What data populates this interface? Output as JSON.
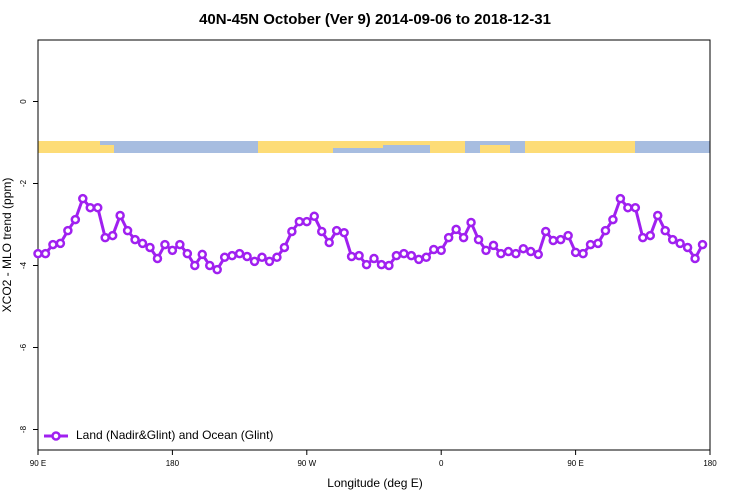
{
  "chart_data": {
    "type": "line",
    "title": "40N-45N October (Ver 9)   2014-09-06 to 2018-12-31",
    "x_label": "Longitude (deg E)",
    "y_label": "XCO2 - MLO trend (ppm)",
    "xlim": [
      90,
      540
    ],
    "ylim": [
      -8.5,
      1.5
    ],
    "xticks": [
      {
        "value": 90,
        "label": "90 E"
      },
      180,
      {
        "value": 270,
        "label": "90 W"
      },
      {
        "value": 360,
        "label": "0"
      },
      {
        "value": 450,
        "label": "90 E"
      },
      {
        "value": 540,
        "label": "180"
      }
    ],
    "yticks": [
      0,
      -2,
      -4,
      -6,
      -8
    ],
    "legend": "bottom-left",
    "x": [
      90,
      95,
      100,
      105,
      110,
      115,
      120,
      125,
      130,
      135,
      140,
      145,
      150,
      155,
      160,
      165,
      170,
      175,
      180,
      185,
      190,
      195,
      200,
      205,
      210,
      215,
      220,
      225,
      230,
      235,
      240,
      245,
      250,
      255,
      260,
      265,
      270,
      275,
      280,
      285,
      290,
      295,
      300,
      305,
      310,
      315,
      320,
      325,
      330,
      335,
      340,
      345,
      350,
      355,
      360,
      365,
      370,
      375,
      380,
      385,
      390,
      395,
      400,
      405,
      410,
      415,
      420,
      425,
      430,
      435,
      440,
      445,
      450,
      455,
      460,
      465,
      470,
      475,
      480,
      485,
      490,
      495,
      500,
      505,
      510,
      515,
      520,
      525,
      530,
      535
    ],
    "series": [
      {
        "name": "Land (Nadir&Glint) and Ocean (Glint)",
        "color": "#a020f0",
        "values": [
          -3.71,
          -3.71,
          -3.49,
          -3.46,
          -3.15,
          -2.88,
          -2.37,
          -2.59,
          -2.59,
          -3.32,
          -3.27,
          -2.78,
          -3.15,
          -3.37,
          -3.46,
          -3.56,
          -3.83,
          -3.49,
          -3.63,
          -3.49,
          -3.71,
          -4.0,
          -3.73,
          -4.0,
          -4.1,
          -3.8,
          -3.76,
          -3.71,
          -3.78,
          -3.9,
          -3.8,
          -3.9,
          -3.8,
          -3.56,
          -3.17,
          -2.93,
          -2.93,
          -2.8,
          -3.17,
          -3.44,
          -3.15,
          -3.2,
          -3.78,
          -3.76,
          -3.98,
          -3.83,
          -3.98,
          -4.0,
          -3.76,
          -3.71,
          -3.76,
          -3.85,
          -3.8,
          -3.61,
          -3.63,
          -3.32,
          -3.12,
          -3.32,
          -2.95,
          -3.37,
          -3.63,
          -3.51,
          -3.71,
          -3.66,
          -3.71,
          -3.59,
          -3.66,
          -3.73,
          -3.17,
          -3.39,
          -3.37,
          -3.27,
          -3.68,
          -3.71,
          -3.49,
          -3.46,
          -3.15,
          -2.88,
          -2.37,
          -2.59,
          -2.59,
          -3.32,
          -3.27,
          -2.78,
          -3.15,
          -3.37,
          -3.46,
          -3.56,
          -3.83,
          -3.49
        ]
      }
    ]
  }
}
